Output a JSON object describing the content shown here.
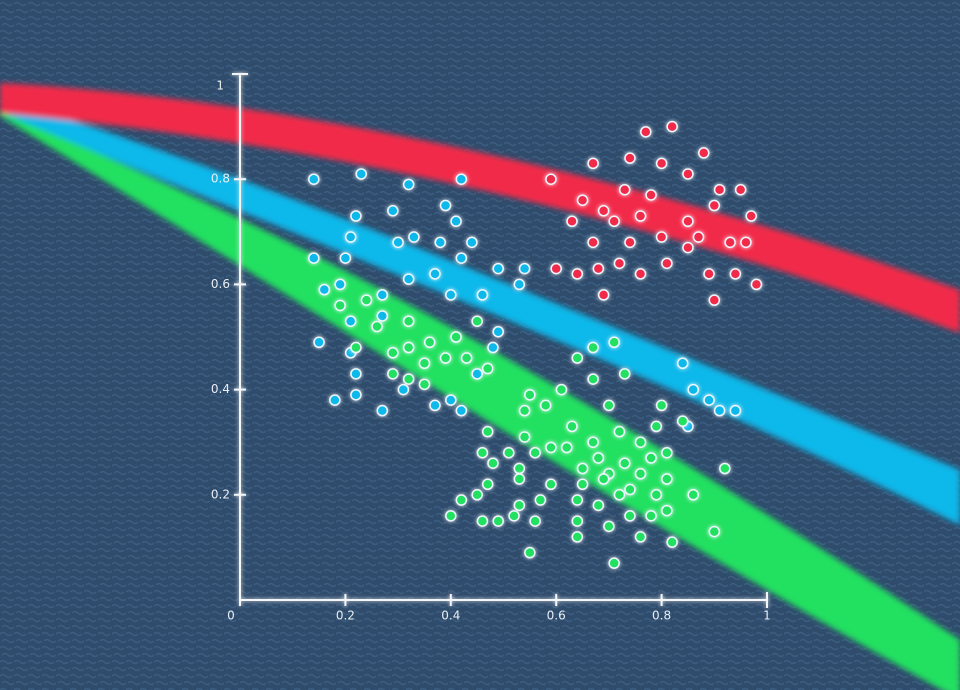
{
  "chart_data": {
    "type": "scatter",
    "xlim": [
      0,
      1
    ],
    "ylim": [
      0,
      1
    ],
    "xticks": [
      0,
      0.2,
      0.4,
      0.6,
      0.8,
      1
    ],
    "yticks": [
      0.2,
      0.4,
      0.6,
      0.8,
      1
    ],
    "series": [
      {
        "color": "#f22a48",
        "x": [
          0.67,
          0.59,
          0.77,
          0.82,
          0.74,
          0.8,
          0.88,
          0.85,
          0.95,
          0.97,
          0.65,
          0.69,
          0.73,
          0.63,
          0.67,
          0.71,
          0.76,
          0.8,
          0.85,
          0.9,
          0.93,
          0.96,
          0.6,
          0.64,
          0.68,
          0.72,
          0.76,
          0.81,
          0.85,
          0.89,
          0.94,
          0.98,
          0.69,
          0.9,
          0.74,
          0.78,
          0.91,
          0.87
        ],
        "values": [
          0.83,
          0.8,
          0.89,
          0.9,
          0.84,
          0.83,
          0.85,
          0.81,
          0.78,
          0.73,
          0.76,
          0.74,
          0.78,
          0.72,
          0.68,
          0.72,
          0.73,
          0.69,
          0.72,
          0.75,
          0.68,
          0.68,
          0.63,
          0.62,
          0.63,
          0.64,
          0.62,
          0.64,
          0.67,
          0.62,
          0.62,
          0.6,
          0.58,
          0.57,
          0.68,
          0.77,
          0.78,
          0.69
        ]
      },
      {
        "color": "#0ab8ea",
        "x": [
          0.14,
          0.23,
          0.32,
          0.42,
          0.39,
          0.22,
          0.29,
          0.41,
          0.21,
          0.3,
          0.33,
          0.38,
          0.44,
          0.14,
          0.2,
          0.32,
          0.37,
          0.42,
          0.49,
          0.54,
          0.16,
          0.19,
          0.27,
          0.4,
          0.46,
          0.53,
          0.21,
          0.27,
          0.49,
          0.15,
          0.21,
          0.22,
          0.18,
          0.22,
          0.27,
          0.31,
          0.37,
          0.4,
          0.42,
          0.45,
          0.48,
          0.84,
          0.86,
          0.89,
          0.94,
          0.91,
          0.85
        ],
        "values": [
          0.8,
          0.81,
          0.79,
          0.8,
          0.75,
          0.73,
          0.74,
          0.72,
          0.69,
          0.68,
          0.69,
          0.68,
          0.68,
          0.65,
          0.65,
          0.61,
          0.62,
          0.65,
          0.63,
          0.63,
          0.59,
          0.6,
          0.58,
          0.58,
          0.58,
          0.6,
          0.53,
          0.54,
          0.51,
          0.49,
          0.47,
          0.43,
          0.38,
          0.39,
          0.36,
          0.4,
          0.37,
          0.38,
          0.36,
          0.43,
          0.48,
          0.45,
          0.4,
          0.38,
          0.36,
          0.36,
          0.33
        ]
      },
      {
        "color": "#20e060",
        "x": [
          0.19,
          0.24,
          0.26,
          0.32,
          0.29,
          0.32,
          0.36,
          0.41,
          0.45,
          0.35,
          0.39,
          0.43,
          0.47,
          0.32,
          0.29,
          0.35,
          0.71,
          0.67,
          0.64,
          0.73,
          0.67,
          0.61,
          0.55,
          0.58,
          0.54,
          0.7,
          0.8,
          0.84,
          0.79,
          0.47,
          0.54,
          0.59,
          0.63,
          0.67,
          0.72,
          0.76,
          0.46,
          0.51,
          0.56,
          0.62,
          0.68,
          0.73,
          0.78,
          0.81,
          0.48,
          0.53,
          0.65,
          0.7,
          0.76,
          0.92,
          0.47,
          0.53,
          0.59,
          0.65,
          0.69,
          0.74,
          0.81,
          0.86,
          0.42,
          0.45,
          0.53,
          0.57,
          0.64,
          0.68,
          0.72,
          0.79,
          0.4,
          0.46,
          0.49,
          0.52,
          0.56,
          0.64,
          0.7,
          0.74,
          0.78,
          0.81,
          0.9,
          0.64,
          0.76,
          0.82,
          0.55,
          0.71,
          0.22
        ],
        "values": [
          0.56,
          0.57,
          0.52,
          0.53,
          0.47,
          0.48,
          0.49,
          0.5,
          0.53,
          0.45,
          0.46,
          0.46,
          0.44,
          0.42,
          0.43,
          0.41,
          0.49,
          0.48,
          0.46,
          0.43,
          0.42,
          0.4,
          0.39,
          0.37,
          0.36,
          0.37,
          0.37,
          0.34,
          0.33,
          0.32,
          0.31,
          0.29,
          0.33,
          0.3,
          0.32,
          0.3,
          0.28,
          0.28,
          0.28,
          0.29,
          0.27,
          0.26,
          0.27,
          0.28,
          0.26,
          0.25,
          0.25,
          0.24,
          0.24,
          0.25,
          0.22,
          0.23,
          0.22,
          0.22,
          0.23,
          0.21,
          0.23,
          0.2,
          0.19,
          0.2,
          0.18,
          0.19,
          0.19,
          0.18,
          0.2,
          0.2,
          0.16,
          0.15,
          0.15,
          0.16,
          0.15,
          0.15,
          0.14,
          0.16,
          0.16,
          0.17,
          0.13,
          0.12,
          0.12,
          0.11,
          0.09,
          0.07,
          0.48
        ]
      }
    ]
  }
}
